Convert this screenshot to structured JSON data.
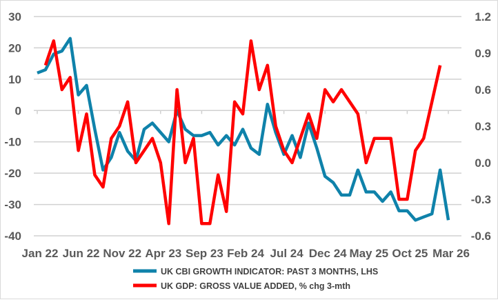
{
  "chart_data": {
    "type": "line",
    "title": "",
    "x": [
      "Jan 22",
      "Feb 22",
      "Mar 22",
      "Apr 22",
      "May 22",
      "Jun 22",
      "Jul 22",
      "Aug 22",
      "Sep 22",
      "Oct 22",
      "Nov 22",
      "Dec 22",
      "Jan 23",
      "Feb 23",
      "Mar 23",
      "Apr 23",
      "May 23",
      "Jun 23",
      "Jul 23",
      "Aug 23",
      "Sep 23",
      "Oct 23",
      "Nov 23",
      "Dec 23",
      "Jan 24",
      "Feb 24",
      "Mar 24",
      "Apr 24",
      "May 24",
      "Jun 24",
      "Jul 24",
      "Aug 24",
      "Sep 24",
      "Oct 24",
      "Nov 24",
      "Dec 24",
      "Jan 25",
      "Feb 25",
      "Mar 25",
      "Apr 25",
      "May 25",
      "Jun 25",
      "Jul 25",
      "Aug 25",
      "Sep 25",
      "Oct 25",
      "Nov 25",
      "Dec 25",
      "Jan 26",
      "Feb 26",
      "Mar 26"
    ],
    "x_tick_labels": [
      "Jan 22",
      "Jun 22",
      "Nov 22",
      "Apr 23",
      "Sep 23",
      "Feb 24",
      "Jul 24",
      "Dec 24",
      "May 25",
      "Oct 25",
      "Mar 26"
    ],
    "y_left": {
      "ylim": [
        -40,
        30
      ],
      "ticks": [
        "30",
        "20",
        "10",
        "0",
        "-10",
        "-20",
        "-30",
        "-40"
      ]
    },
    "y_right": {
      "ylim": [
        -0.6,
        1.2
      ],
      "ticks": [
        "1.2",
        "0.9",
        "0.6",
        "0.3",
        "0.0",
        "-0.3",
        "-0.6"
      ]
    },
    "grid": true,
    "legend_placement": "bottom",
    "series": [
      {
        "name": "UK CBI GROWTH INDICATOR: PAST 3 MONTHS, LHS",
        "axis": "left",
        "color": "#0f82aa",
        "values": [
          12,
          13,
          18,
          19,
          23,
          5,
          8,
          -6,
          -19,
          -15,
          -7,
          -13,
          -16,
          -6,
          -4,
          -7,
          -10,
          0,
          -6,
          -8,
          -8,
          -7,
          -11,
          -8,
          -11,
          -6,
          -12,
          -14,
          2,
          -7,
          -14,
          -8,
          -15,
          -4,
          -12,
          -21,
          -23,
          -27,
          -27,
          -19,
          -26,
          -26,
          -29,
          -26,
          -32,
          -32,
          -35,
          -34,
          -33,
          -19,
          -35
        ]
      },
      {
        "name": "UK GDP: GROSS VALUE ADDED, % chg 3-mth",
        "axis": "right",
        "color": "#ff0000",
        "values": [
          null,
          0.8,
          1.0,
          0.6,
          0.7,
          0.1,
          0.4,
          -0.1,
          -0.2,
          0.2,
          0.3,
          0.5,
          0.0,
          0.1,
          0.2,
          0.0,
          -0.5,
          0.6,
          0.0,
          0.2,
          -0.5,
          -0.5,
          -0.1,
          -0.4,
          0.5,
          0.4,
          1.0,
          0.6,
          0.8,
          0.3,
          0.1,
          0.0,
          0.2,
          0.4,
          0.2,
          0.6,
          0.5,
          0.6,
          0.5,
          0.4,
          0.0,
          0.2,
          0.2,
          0.2,
          -0.3,
          -0.3,
          0.1,
          0.2,
          0.5,
          0.8,
          null
        ]
      }
    ]
  }
}
